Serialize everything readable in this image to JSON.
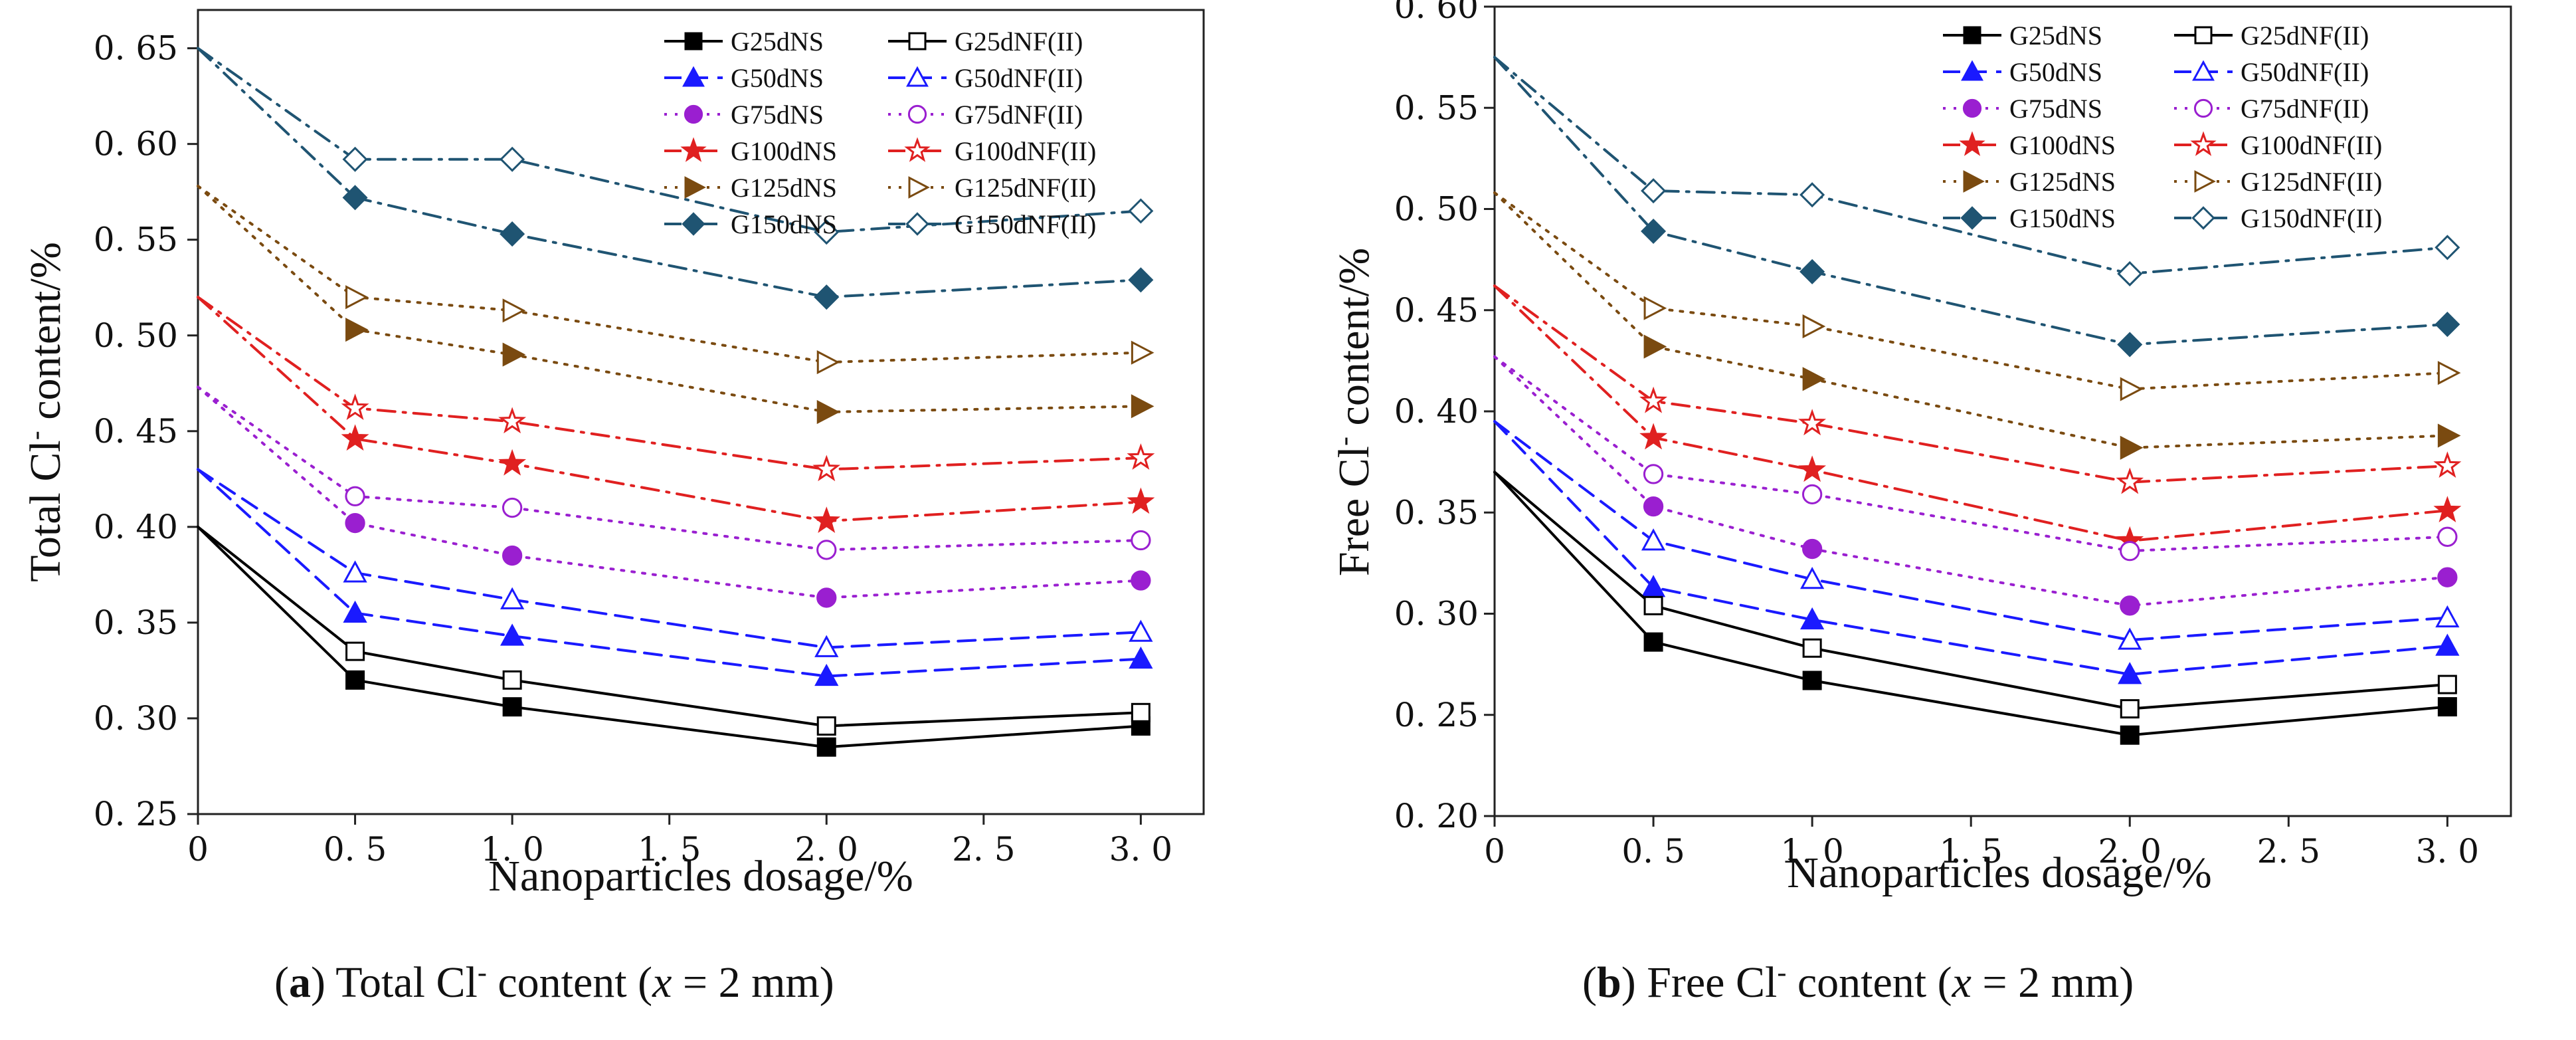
{
  "chart_data": [
    {
      "type": "line",
      "panel": "a",
      "ylabel": "Total Cl",
      "ylabel_sup": "-",
      "ylabel_suffix": " content/%",
      "xlabel": "Nanoparticles dosage/%",
      "x": [
        0,
        0.5,
        1.0,
        2.0,
        3.0
      ],
      "xlim": [
        0,
        3.2
      ],
      "ylim": [
        0.25,
        0.67
      ],
      "xticks": [
        0,
        0.5,
        1.0,
        1.5,
        2.0,
        2.5,
        3.0
      ],
      "xtick_labels": [
        "0",
        "0. 5",
        "1. 0",
        "1. 5",
        "2. 0",
        "2. 5",
        "3. 0"
      ],
      "yticks": [
        0.25,
        0.3,
        0.35,
        0.4,
        0.45,
        0.5,
        0.55,
        0.6,
        0.65
      ],
      "ytick_labels": [
        "0. 25",
        "0. 30",
        "0. 35",
        "0. 40",
        "0. 45",
        "0. 50",
        "0. 55",
        "0. 60",
        "0. 65"
      ],
      "legend_position": "top-right",
      "series": [
        {
          "name": "G25dNS",
          "color": "#000000",
          "marker": "square",
          "filled": true,
          "dash": "solid",
          "values": [
            0.4,
            0.32,
            0.306,
            0.285,
            0.296
          ]
        },
        {
          "name": "G50dNS",
          "color": "#1a1aff",
          "marker": "triangle",
          "filled": true,
          "dash": "dash",
          "values": [
            0.43,
            0.355,
            0.343,
            0.322,
            0.331
          ]
        },
        {
          "name": "G75dNS",
          "color": "#9a1fd0",
          "marker": "circle",
          "filled": true,
          "dash": "dot",
          "values": [
            0.473,
            0.402,
            0.385,
            0.363,
            0.372
          ]
        },
        {
          "name": "G100dNS",
          "color": "#e02020",
          "marker": "star",
          "filled": true,
          "dash": "dashdot",
          "values": [
            0.52,
            0.446,
            0.433,
            0.403,
            0.413
          ]
        },
        {
          "name": "G125dNS",
          "color": "#7a4a10",
          "marker": "triangle-right",
          "filled": true,
          "dash": "dot",
          "values": [
            0.578,
            0.503,
            0.49,
            0.46,
            0.463
          ]
        },
        {
          "name": "G150dNS",
          "color": "#1f5472",
          "marker": "diamond",
          "filled": true,
          "dash": "dashdot",
          "values": [
            0.65,
            0.572,
            0.553,
            0.52,
            0.529
          ]
        },
        {
          "name": "G25dNF(II)",
          "color": "#000000",
          "marker": "square",
          "filled": false,
          "dash": "solid",
          "values": [
            0.4,
            0.335,
            0.32,
            0.296,
            0.303
          ]
        },
        {
          "name": "G50dNF(II)",
          "color": "#1a1aff",
          "marker": "triangle",
          "filled": false,
          "dash": "dash",
          "values": [
            0.43,
            0.376,
            0.362,
            0.337,
            0.345
          ]
        },
        {
          "name": "G75dNF(II)",
          "color": "#9a1fd0",
          "marker": "circle",
          "filled": false,
          "dash": "dot",
          "values": [
            0.473,
            0.416,
            0.41,
            0.388,
            0.393
          ]
        },
        {
          "name": "G100dNF(II)",
          "color": "#e02020",
          "marker": "star",
          "filled": false,
          "dash": "dashdot",
          "values": [
            0.52,
            0.462,
            0.455,
            0.43,
            0.436
          ]
        },
        {
          "name": "G125dNF(II)",
          "color": "#7a4a10",
          "marker": "triangle-right",
          "filled": false,
          "dash": "dot",
          "values": [
            0.578,
            0.52,
            0.513,
            0.486,
            0.491
          ]
        },
        {
          "name": "G150dNF(II)",
          "color": "#1f5472",
          "marker": "diamond",
          "filled": false,
          "dash": "dashdot",
          "values": [
            0.65,
            0.592,
            0.592,
            0.554,
            0.565
          ]
        }
      ]
    },
    {
      "type": "line",
      "panel": "b",
      "ylabel": "Free Cl",
      "ylabel_sup": "-",
      "ylabel_suffix": " content/%",
      "xlabel": "Nanoparticles dosage/%",
      "x": [
        0,
        0.5,
        1.0,
        2.0,
        3.0
      ],
      "xlim": [
        0,
        3.2
      ],
      "ylim": [
        0.2,
        0.6
      ],
      "xticks": [
        0,
        0.5,
        1.0,
        1.5,
        2.0,
        2.5,
        3.0
      ],
      "xtick_labels": [
        "0",
        "0. 5",
        "1. 0",
        "1. 5",
        "2. 0",
        "2. 5",
        "3. 0"
      ],
      "yticks": [
        0.2,
        0.25,
        0.3,
        0.35,
        0.4,
        0.45,
        0.5,
        0.55,
        0.6
      ],
      "ytick_labels": [
        "0. 20",
        "0. 25",
        "0. 30",
        "0. 35",
        "0. 40",
        "0. 45",
        "0. 50",
        "0. 55",
        "0. 60"
      ],
      "legend_position": "top-right",
      "series": [
        {
          "name": "G25dNS",
          "color": "#000000",
          "marker": "square",
          "filled": true,
          "dash": "solid",
          "values": [
            0.37,
            0.286,
            0.267,
            0.24,
            0.254
          ]
        },
        {
          "name": "G50dNS",
          "color": "#1a1aff",
          "marker": "triangle",
          "filled": true,
          "dash": "dash",
          "values": [
            0.395,
            0.313,
            0.297,
            0.27,
            0.284
          ]
        },
        {
          "name": "G75dNS",
          "color": "#9a1fd0",
          "marker": "circle",
          "filled": true,
          "dash": "dot",
          "values": [
            0.427,
            0.353,
            0.332,
            0.304,
            0.318
          ]
        },
        {
          "name": "G100dNS",
          "color": "#e02020",
          "marker": "star",
          "filled": true,
          "dash": "dashdot",
          "values": [
            0.462,
            0.387,
            0.371,
            0.336,
            0.351
          ]
        },
        {
          "name": "G125dNS",
          "color": "#7a4a10",
          "marker": "triangle-right",
          "filled": true,
          "dash": "dot",
          "values": [
            0.508,
            0.432,
            0.416,
            0.382,
            0.388
          ]
        },
        {
          "name": "G150dNS",
          "color": "#1f5472",
          "marker": "diamond",
          "filled": true,
          "dash": "dashdot",
          "values": [
            0.575,
            0.489,
            0.469,
            0.433,
            0.443
          ]
        },
        {
          "name": "G25dNF(II)",
          "color": "#000000",
          "marker": "square",
          "filled": false,
          "dash": "solid",
          "values": [
            0.37,
            0.304,
            0.283,
            0.253,
            0.265
          ]
        },
        {
          "name": "G50dNF(II)",
          "color": "#1a1aff",
          "marker": "triangle",
          "filled": false,
          "dash": "dash",
          "values": [
            0.395,
            0.336,
            0.317,
            0.287,
            0.298
          ]
        },
        {
          "name": "G75dNF(II)",
          "color": "#9a1fd0",
          "marker": "circle",
          "filled": false,
          "dash": "dot",
          "values": [
            0.427,
            0.369,
            0.359,
            0.331,
            0.338
          ]
        },
        {
          "name": "G100dNF(II)",
          "color": "#e02020",
          "marker": "star",
          "filled": false,
          "dash": "dashdot",
          "values": [
            0.462,
            0.405,
            0.394,
            0.365,
            0.373
          ]
        },
        {
          "name": "G125dNF(II)",
          "color": "#7a4a10",
          "marker": "triangle-right",
          "filled": false,
          "dash": "dot",
          "values": [
            0.508,
            0.451,
            0.442,
            0.411,
            0.419
          ]
        },
        {
          "name": "G150dNF(II)",
          "color": "#1f5472",
          "marker": "diamond",
          "filled": false,
          "dash": "dashdot",
          "values": [
            0.575,
            0.509,
            0.507,
            0.468,
            0.481
          ]
        }
      ]
    }
  ],
  "captions": [
    {
      "letter": "a",
      "text_before": " Total Cl",
      "sup": "-",
      "text_mid": " content (",
      "var": "x",
      "text_after": " = 2 mm)"
    },
    {
      "letter": "b",
      "text_before": " Free Cl",
      "sup": "-",
      "text_mid": " content (",
      "var": "x",
      "text_after": " = 2 mm)"
    }
  ]
}
